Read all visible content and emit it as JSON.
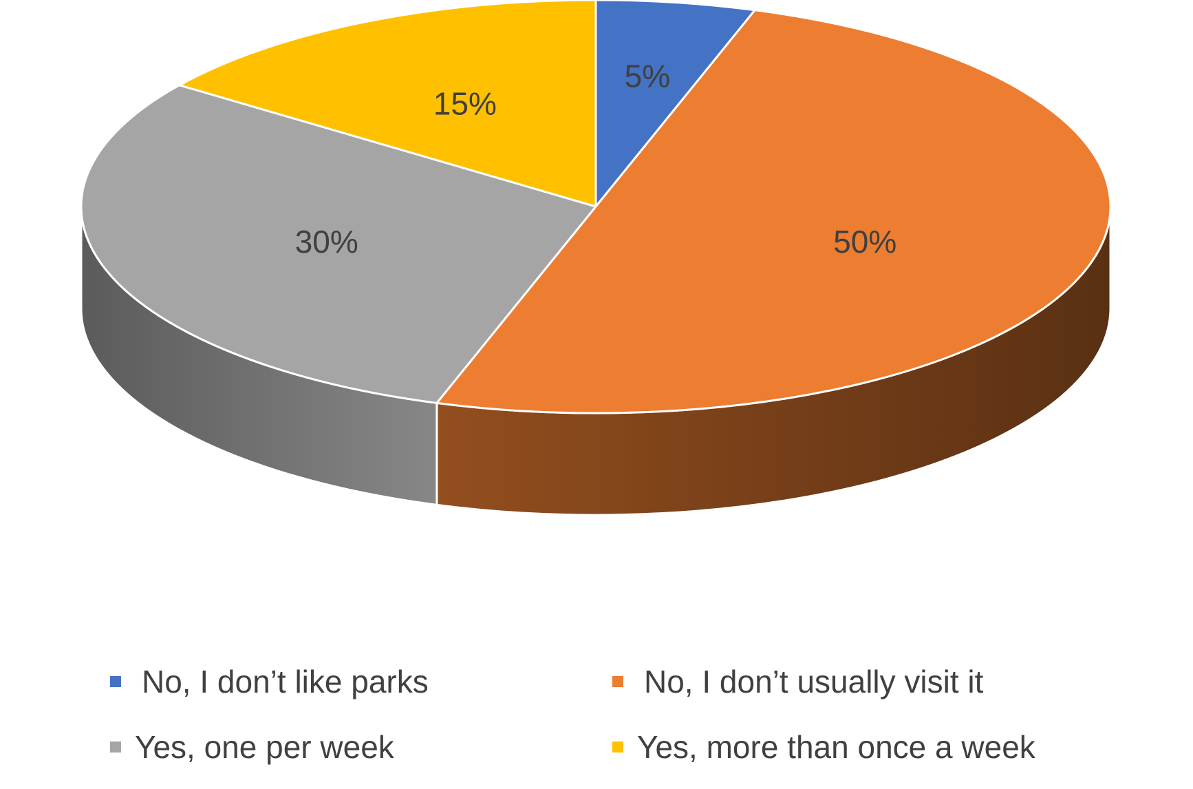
{
  "chart_data": {
    "type": "pie",
    "style": "3d",
    "legend_position": "bottom",
    "slices": [
      {
        "label": "No, I don’t like parks",
        "value": 5,
        "display": "5%",
        "color": "#4472C4"
      },
      {
        "label": "No, I don’t usually visit it",
        "value": 50,
        "display": "50%",
        "color": "#ED7D31"
      },
      {
        "label": "Yes, one per week",
        "value": 30,
        "display": "30%",
        "color": "#A5A5A5"
      },
      {
        "label": "Yes, more than once a week",
        "value": 15,
        "display": "15%",
        "color": "#FFC000"
      }
    ]
  }
}
